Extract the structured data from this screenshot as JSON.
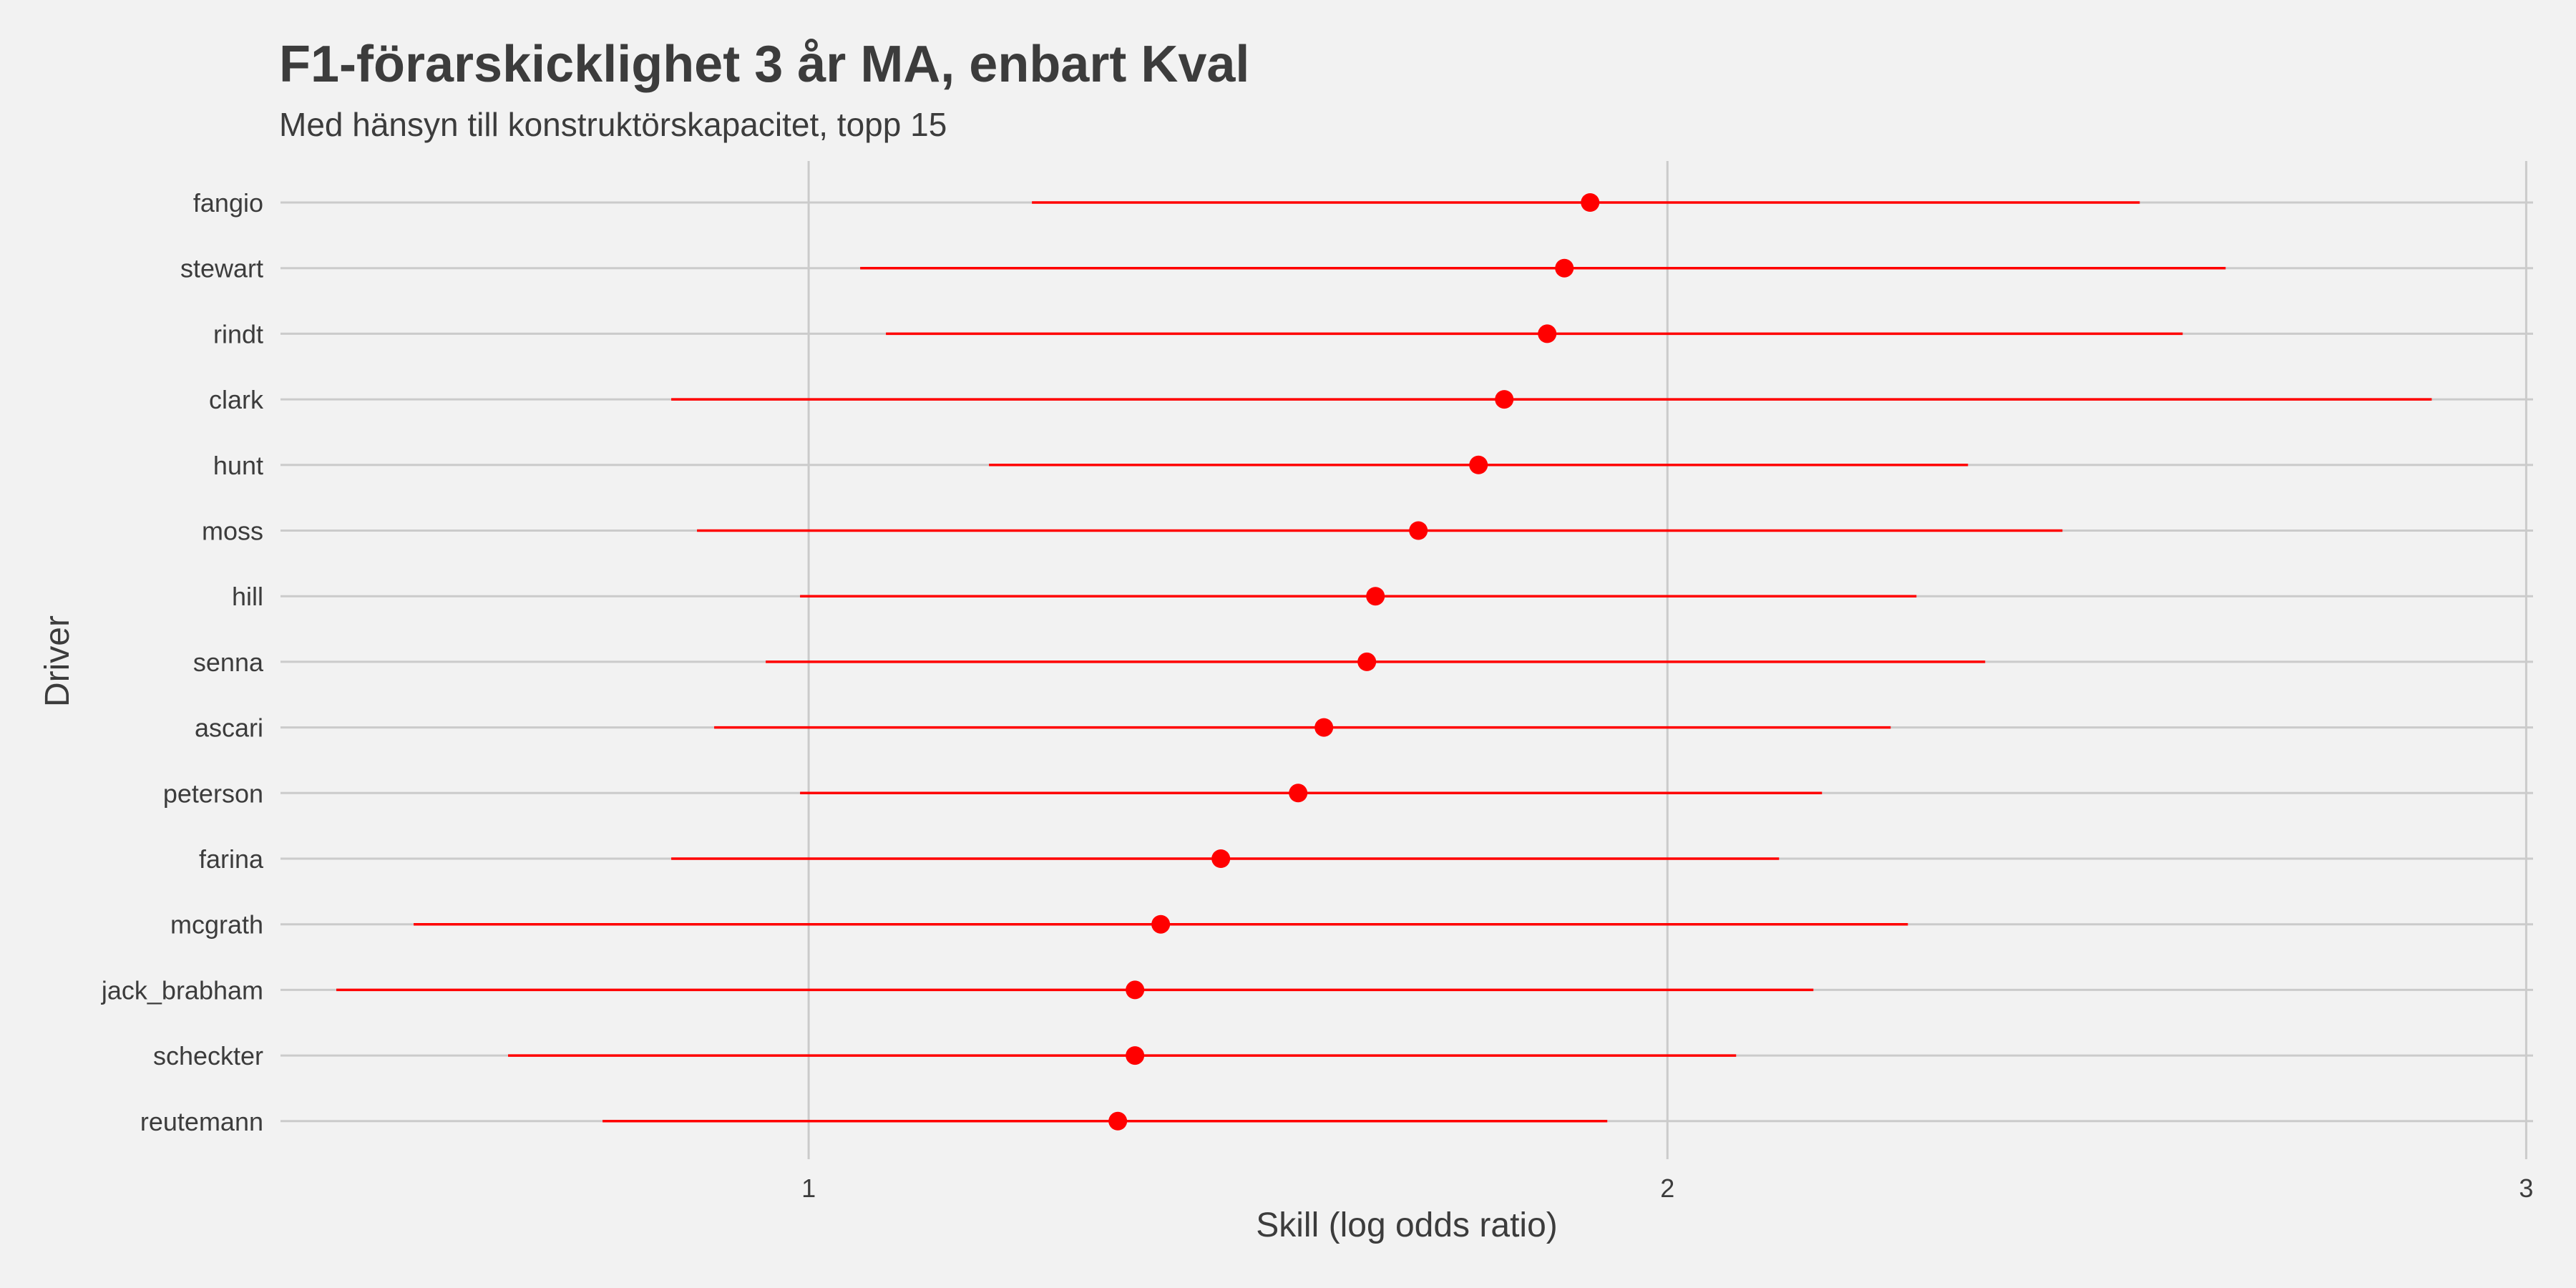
{
  "chart_data": {
    "type": "dot-interval",
    "title": "F1-förarskicklighet  3 år MA, enbart Kval",
    "subtitle": "Med hänsyn till konstruktörskapacitet, topp 15",
    "xlabel": "Skill (log odds ratio)",
    "ylabel": "Driver",
    "xlim": [
      0.385,
      3.008
    ],
    "x_ticks": [
      1,
      2,
      3
    ],
    "x_tick_labels": [
      "1",
      "2",
      "3"
    ],
    "grid": true,
    "legend": "none",
    "colors": {
      "point": "#ff0000",
      "interval": "#ff0000",
      "grid": "#cbcbcb",
      "background": "#f2f2f2",
      "text": "#3c3c3c"
    },
    "drivers": [
      {
        "name": "fangio",
        "estimate": 1.91,
        "lower": 1.26,
        "upper": 2.55
      },
      {
        "name": "stewart",
        "estimate": 1.88,
        "lower": 1.06,
        "upper": 2.65
      },
      {
        "name": "rindt",
        "estimate": 1.86,
        "lower": 1.09,
        "upper": 2.6
      },
      {
        "name": "clark",
        "estimate": 1.81,
        "lower": 0.84,
        "upper": 2.89
      },
      {
        "name": "hunt",
        "estimate": 1.78,
        "lower": 1.21,
        "upper": 2.35
      },
      {
        "name": "moss",
        "estimate": 1.71,
        "lower": 0.87,
        "upper": 2.46
      },
      {
        "name": "hill",
        "estimate": 1.66,
        "lower": 0.99,
        "upper": 2.29
      },
      {
        "name": "senna",
        "estimate": 1.65,
        "lower": 0.95,
        "upper": 2.37
      },
      {
        "name": "ascari",
        "estimate": 1.6,
        "lower": 0.89,
        "upper": 2.26
      },
      {
        "name": "peterson",
        "estimate": 1.57,
        "lower": 0.99,
        "upper": 2.18
      },
      {
        "name": "farina",
        "estimate": 1.48,
        "lower": 0.84,
        "upper": 2.13
      },
      {
        "name": "mcgrath",
        "estimate": 1.41,
        "lower": 0.54,
        "upper": 2.28
      },
      {
        "name": "jack_brabham",
        "estimate": 1.38,
        "lower": 0.45,
        "upper": 2.17
      },
      {
        "name": "scheckter",
        "estimate": 1.38,
        "lower": 0.65,
        "upper": 2.08
      },
      {
        "name": "reutemann",
        "estimate": 1.36,
        "lower": 0.76,
        "upper": 1.93
      }
    ]
  }
}
